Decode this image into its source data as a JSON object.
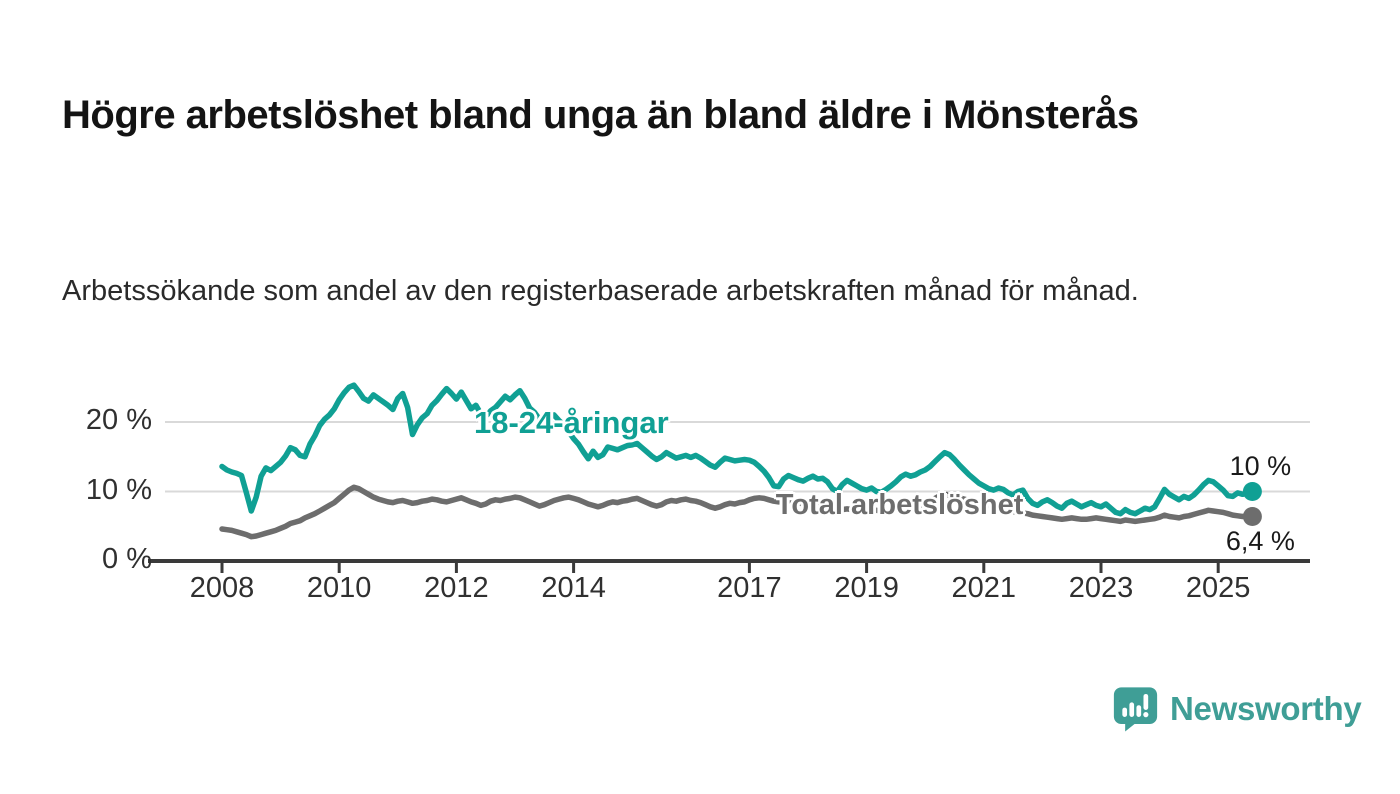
{
  "header": {
    "title": "Högre arbetslöshet bland unga än bland äldre i Mönsterås",
    "subtitle": "Arbetssökande som andel av den registerbaserade arbetskraften månad för månad."
  },
  "branding": {
    "name": "Newsworthy",
    "logo_icon": "newsworthy-speech-bubble-bar-chart-icon",
    "color": "#3f9e96"
  },
  "chart_data": {
    "type": "line",
    "title": "Högre arbetslöshet bland unga än bland äldre i Mönsterås",
    "subtitle": "Arbetssökande som andel av den registerbaserade arbetskraften månad för månad.",
    "unit": "%",
    "x_start_year": 2008,
    "points_per_year": 12,
    "x_ticks": [
      2008,
      2010,
      2012,
      2014,
      2017,
      2019,
      2021,
      2023,
      2025
    ],
    "y_ticks": [
      {
        "value": 0,
        "label": "0 %"
      },
      {
        "value": 10,
        "label": "10 %"
      },
      {
        "value": 20,
        "label": "20 %"
      }
    ],
    "ylim": [
      0,
      27
    ],
    "grid": "horizontal",
    "axis_color": "#3a3a3a",
    "grid_color": "#d9d9d9",
    "series": [
      {
        "name": "18-24-åringar",
        "color": "#10a094",
        "end_label": "10 %",
        "end_label_position": "above",
        "label_anchor": {
          "year": 2012.3,
          "value": 19.5
        },
        "label_font_size": 31,
        "values": [
          13.6,
          13.1,
          12.8,
          12.6,
          12.3,
          9.8,
          7.2,
          9.2,
          12.2,
          13.4,
          13.0,
          13.6,
          14.2,
          15.1,
          16.3,
          16.0,
          15.2,
          15.0,
          16.8,
          18.0,
          19.5,
          20.4,
          21.0,
          21.9,
          23.2,
          24.2,
          25.0,
          25.3,
          24.4,
          23.4,
          23.0,
          23.9,
          23.4,
          22.9,
          22.4,
          21.8,
          23.4,
          24.1,
          22.1,
          18.2,
          19.6,
          20.6,
          21.2,
          22.4,
          23.1,
          24.0,
          24.8,
          24.1,
          23.3,
          24.3,
          23.1,
          21.9,
          22.4,
          21.2,
          20.8,
          21.6,
          22.1,
          22.9,
          23.7,
          23.2,
          23.9,
          24.5,
          23.4,
          22.0,
          21.4,
          20.4,
          19.8,
          20.6,
          21.0,
          20.2,
          19.6,
          18.6,
          17.6,
          16.8,
          15.7,
          14.7,
          15.8,
          14.9,
          15.3,
          16.4,
          16.2,
          16.0,
          16.3,
          16.6,
          16.7,
          16.9,
          16.3,
          15.7,
          15.1,
          14.6,
          15.0,
          15.6,
          15.2,
          14.8,
          15.0,
          15.2,
          14.9,
          15.2,
          14.8,
          14.3,
          13.8,
          13.5,
          14.2,
          14.8,
          14.6,
          14.4,
          14.5,
          14.6,
          14.5,
          14.2,
          13.6,
          12.9,
          12.0,
          10.8,
          10.7,
          11.8,
          12.3,
          12.0,
          11.7,
          11.5,
          11.9,
          12.2,
          11.8,
          11.9,
          11.4,
          10.4,
          10.0,
          11.0,
          11.6,
          11.2,
          10.8,
          10.4,
          10.2,
          10.5,
          10.0,
          9.9,
          10.3,
          10.8,
          11.4,
          12.1,
          12.5,
          12.2,
          12.4,
          12.8,
          13.1,
          13.6,
          14.3,
          15.0,
          15.6,
          15.3,
          14.6,
          13.8,
          13.1,
          12.4,
          11.8,
          11.2,
          10.8,
          10.4,
          10.2,
          10.5,
          10.3,
          9.8,
          9.5,
          10.0,
          10.2,
          9.0,
          8.3,
          8.0,
          8.5,
          8.8,
          8.4,
          7.9,
          7.6,
          8.3,
          8.6,
          8.2,
          7.8,
          8.1,
          8.4,
          8.0,
          7.8,
          8.2,
          7.6,
          7.0,
          6.8,
          7.4,
          7.0,
          6.8,
          7.2,
          7.6,
          7.4,
          7.8,
          9.0,
          10.3,
          9.6,
          9.2,
          8.8,
          9.3,
          9.0,
          9.5,
          10.2,
          11.0,
          11.6,
          11.4,
          10.8,
          10.2,
          9.4,
          9.3,
          9.8,
          9.6,
          9.8,
          10.0
        ]
      },
      {
        "name": "Total arbetslöshet",
        "color": "#6d6d6d",
        "end_label": "6,4 %",
        "end_label_position": "below",
        "label_anchor": {
          "year": 2017.45,
          "value": 7.6
        },
        "label_font_size": 29,
        "values": [
          4.6,
          4.5,
          4.4,
          4.2,
          4.0,
          3.8,
          3.5,
          3.6,
          3.8,
          4.0,
          4.2,
          4.4,
          4.7,
          5.0,
          5.4,
          5.6,
          5.8,
          6.2,
          6.5,
          6.8,
          7.2,
          7.6,
          8.0,
          8.4,
          9.0,
          9.6,
          10.2,
          10.6,
          10.4,
          10.0,
          9.6,
          9.2,
          8.9,
          8.7,
          8.5,
          8.4,
          8.6,
          8.7,
          8.5,
          8.3,
          8.4,
          8.6,
          8.7,
          8.9,
          8.8,
          8.6,
          8.5,
          8.7,
          8.9,
          9.1,
          8.8,
          8.5,
          8.3,
          8.0,
          8.2,
          8.6,
          8.8,
          8.7,
          8.9,
          9.0,
          9.2,
          9.1,
          8.8,
          8.5,
          8.2,
          7.9,
          8.1,
          8.4,
          8.7,
          8.9,
          9.1,
          9.2,
          9.0,
          8.8,
          8.5,
          8.2,
          8.0,
          7.8,
          8.0,
          8.3,
          8.5,
          8.4,
          8.6,
          8.7,
          8.9,
          9.0,
          8.7,
          8.4,
          8.1,
          7.9,
          8.1,
          8.5,
          8.7,
          8.6,
          8.8,
          8.9,
          8.7,
          8.6,
          8.4,
          8.1,
          7.8,
          7.6,
          7.8,
          8.1,
          8.3,
          8.2,
          8.4,
          8.5,
          8.8,
          9.0,
          9.1,
          9.0,
          8.8,
          8.6,
          8.5,
          8.6,
          8.7,
          8.6,
          8.4,
          8.2,
          8.0,
          7.9,
          7.8,
          7.6,
          7.5,
          7.4,
          7.3,
          7.4,
          7.5,
          7.4,
          7.3,
          7.2,
          7.3,
          7.4,
          7.3,
          7.2,
          7.1,
          7.2,
          7.4,
          7.5,
          7.6,
          7.7,
          7.8,
          8.0,
          8.3,
          8.6,
          9.0,
          9.4,
          9.6,
          9.5,
          9.3,
          9.1,
          8.9,
          8.7,
          8.5,
          8.3,
          8.1,
          8.0,
          7.9,
          7.7,
          7.5,
          7.3,
          7.1,
          7.0,
          6.9,
          6.8,
          6.6,
          6.5,
          6.4,
          6.3,
          6.2,
          6.1,
          6.0,
          6.1,
          6.2,
          6.1,
          6.0,
          6.0,
          6.1,
          6.2,
          6.1,
          6.0,
          5.9,
          5.8,
          5.7,
          5.9,
          5.8,
          5.7,
          5.8,
          5.9,
          6.0,
          6.1,
          6.3,
          6.6,
          6.4,
          6.3,
          6.2,
          6.4,
          6.5,
          6.7,
          6.9,
          7.1,
          7.3,
          7.2,
          7.1,
          7.0,
          6.8,
          6.6,
          6.5,
          6.4,
          6.5,
          6.4
        ]
      }
    ]
  }
}
